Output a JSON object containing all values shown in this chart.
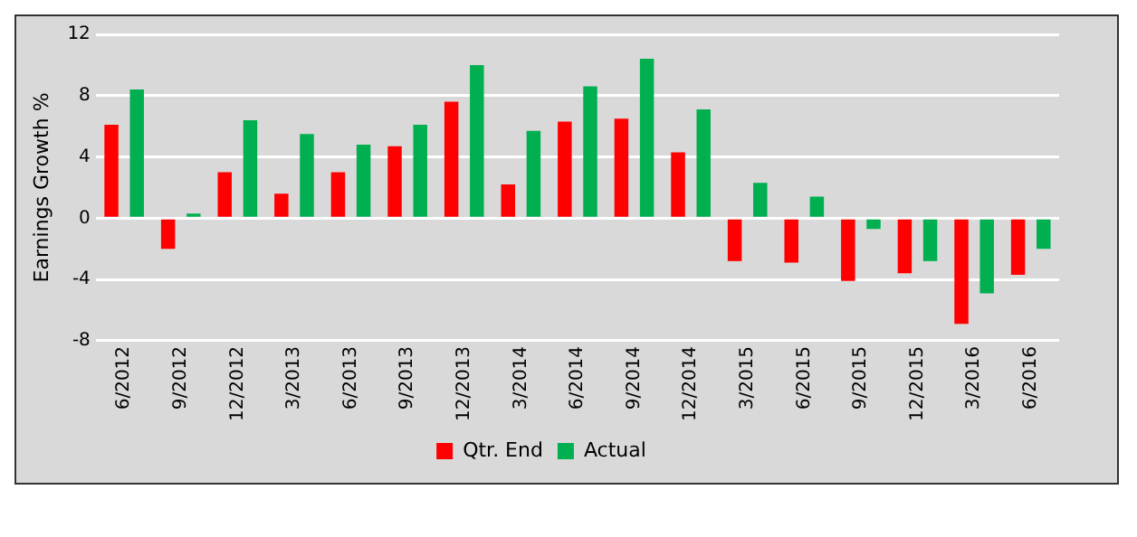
{
  "chart_data": {
    "type": "bar",
    "ylabel": "Earnings Growth %",
    "categories": [
      "6/2012",
      "9/2012",
      "12/2012",
      "3/2013",
      "6/2013",
      "9/2013",
      "12/2013",
      "3/2014",
      "6/2014",
      "9/2014",
      "12/2014",
      "3/2015",
      "6/2015",
      "9/2015",
      "12/2015",
      "3/2016",
      "6/2016"
    ],
    "series": [
      {
        "name": "Qtr. End",
        "color": "#ff0000",
        "values": [
          6.1,
          -2.0,
          3.0,
          1.6,
          3.0,
          4.7,
          7.6,
          2.2,
          6.3,
          6.5,
          4.3,
          -2.8,
          -2.9,
          -4.1,
          -3.6,
          -6.9,
          -3.7
        ]
      },
      {
        "name": "Actual",
        "color": "#00b050",
        "values": [
          8.4,
          0.3,
          6.4,
          5.5,
          4.8,
          6.1,
          10.0,
          5.7,
          8.6,
          10.4,
          7.1,
          2.3,
          1.4,
          -0.7,
          -2.8,
          -4.9,
          -2.0
        ]
      }
    ],
    "ylim": [
      -8,
      12
    ],
    "yticks": [
      -8,
      -4,
      0,
      4,
      8,
      12
    ],
    "grid": "y",
    "legend": "bottom"
  }
}
